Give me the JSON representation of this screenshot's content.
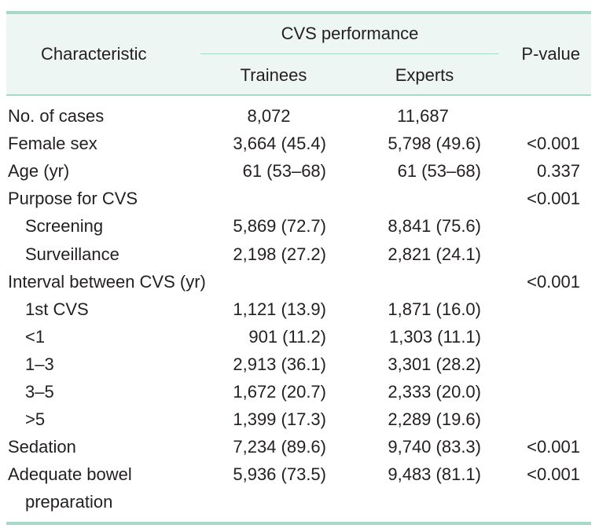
{
  "header": {
    "characteristic": "Characteristic",
    "group": "CVS performance",
    "trainees": "Trainees",
    "experts": "Experts",
    "pvalue": "P-value"
  },
  "rows": [
    {
      "label": "No. of cases",
      "trainees": "8,072",
      "experts": "11,687",
      "p": "",
      "indent": false
    },
    {
      "label": "Female sex",
      "trainees": "3,664 (45.4)",
      "experts": "5,798 (49.6)",
      "p": "<0.001",
      "indent": false
    },
    {
      "label": "Age (yr)",
      "trainees": "61 (53–68)",
      "experts": "61 (53–68)",
      "p": "0.337",
      "indent": false
    },
    {
      "label": "Purpose for CVS",
      "trainees": "",
      "experts": "",
      "p": "<0.001",
      "indent": false
    },
    {
      "label": "Screening",
      "trainees": "5,869 (72.7)",
      "experts": "8,841 (75.6)",
      "p": "",
      "indent": true
    },
    {
      "label": "Surveillance",
      "trainees": "2,198 (27.2)",
      "experts": "2,821 (24.1)",
      "p": "",
      "indent": true
    },
    {
      "label": "Interval between CVS (yr)",
      "trainees": "",
      "experts": "",
      "p": "<0.001",
      "indent": false
    },
    {
      "label": "1st CVS",
      "trainees": "1,121 (13.9)",
      "experts": "1,871 (16.0)",
      "p": "",
      "indent": true
    },
    {
      "label": "<1",
      "trainees": "901 (11.2)",
      "experts": "1,303 (11.1)",
      "p": "",
      "indent": true
    },
    {
      "label": "1–3",
      "trainees": "2,913 (36.1)",
      "experts": "3,301 (28.2)",
      "p": "",
      "indent": true
    },
    {
      "label": "3–5",
      "trainees": "1,672 (20.7)",
      "experts": "2,333 (20.0)",
      "p": "",
      "indent": true
    },
    {
      "label": ">5",
      "trainees": "1,399 (17.3)",
      "experts": "2,289 (19.6)",
      "p": "",
      "indent": true
    },
    {
      "label": "Sedation",
      "trainees": "7,234 (89.6)",
      "experts": "9,740 (83.3)",
      "p": "<0.001",
      "indent": false
    },
    {
      "label": "Adequate bowel",
      "label2": "preparation",
      "trainees": "5,936 (73.5)",
      "experts": "9,483 (81.1)",
      "p": "<0.001",
      "indent": false
    }
  ]
}
